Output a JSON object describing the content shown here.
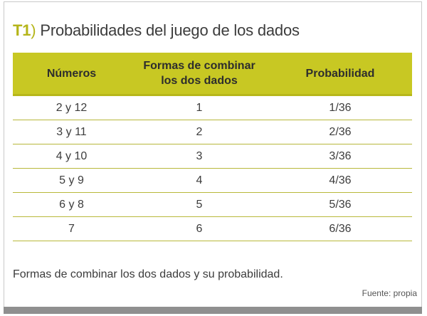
{
  "title": {
    "code": "T1",
    "paren": ")",
    "text": "Probabilidades del juego de los dados"
  },
  "table": {
    "headers": [
      "Números",
      "Formas de combinar los dos dados",
      "Probabilidad"
    ],
    "rows": [
      [
        "2 y 12",
        "1",
        "1/36"
      ],
      [
        "3 y 11",
        "2",
        "2/36"
      ],
      [
        "4 y 10",
        "3",
        "3/36"
      ],
      [
        "5 y 9",
        "4",
        "4/36"
      ],
      [
        "6 y 8",
        "5",
        "5/36"
      ],
      [
        "7",
        "6",
        "6/36"
      ]
    ]
  },
  "caption": "Formas de combinar los dos dados y su probabilidad.",
  "source": "Fuente: propia",
  "colors": {
    "accent": "#c8c823",
    "title_code": "#b5b51a",
    "text": "#3c3c3c",
    "bottom_bar": "#8f8f8f"
  }
}
